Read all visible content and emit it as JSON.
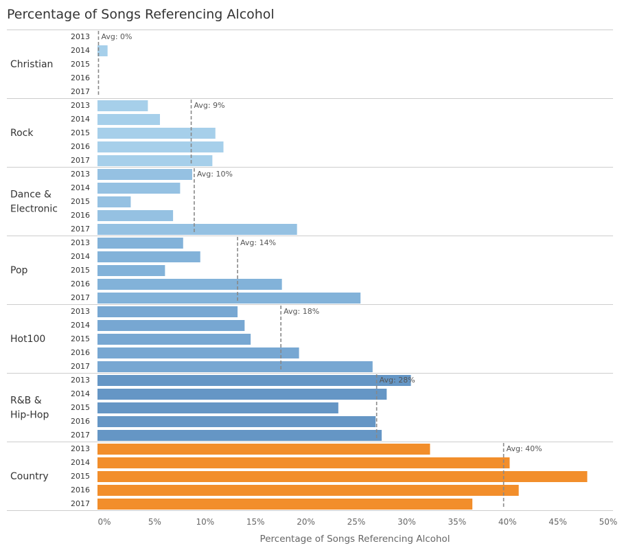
{
  "chart_data": {
    "type": "bar",
    "orientation": "horizontal",
    "title": "Percentage of Songs Referencing Alcohol",
    "xlabel": "Percentage of Songs Referencing Alcohol",
    "xlim": [
      0,
      50
    ],
    "xticks": [
      "0%",
      "5%",
      "10%",
      "15%",
      "20%",
      "25%",
      "30%",
      "35%",
      "40%",
      "45%",
      "50%"
    ],
    "xtick_values": [
      0,
      5,
      10,
      15,
      20,
      25,
      30,
      35,
      40,
      45,
      50
    ],
    "grid": false,
    "legend": "none",
    "groups": [
      {
        "label": [
          "Christian"
        ],
        "color": "#a6cfea",
        "avg": 0.1,
        "avg_label": "Avg: 0%",
        "bars": [
          {
            "year": "2013",
            "value": 0
          },
          {
            "year": "2014",
            "value": 1
          },
          {
            "year": "2015",
            "value": 0
          },
          {
            "year": "2016",
            "value": 0
          },
          {
            "year": "2017",
            "value": 0
          }
        ]
      },
      {
        "label": [
          "Rock"
        ],
        "color": "#a6cfea",
        "avg": 9.3,
        "avg_label": "Avg: 9%",
        "bars": [
          {
            "year": "2013",
            "value": 5
          },
          {
            "year": "2014",
            "value": 6.2
          },
          {
            "year": "2015",
            "value": 11.7
          },
          {
            "year": "2016",
            "value": 12.5
          },
          {
            "year": "2017",
            "value": 11.4
          }
        ]
      },
      {
        "label": [
          "Dance &",
          "Electronic"
        ],
        "color": "#95c1e2",
        "avg": 9.6,
        "avg_label": "Avg: 10%",
        "bars": [
          {
            "year": "2013",
            "value": 9.4
          },
          {
            "year": "2014",
            "value": 8.2
          },
          {
            "year": "2015",
            "value": 3.3
          },
          {
            "year": "2016",
            "value": 7.5
          },
          {
            "year": "2017",
            "value": 19.8
          }
        ]
      },
      {
        "label": [
          "Pop"
        ],
        "color": "#82b2d9",
        "avg": 13.9,
        "avg_label": "Avg: 14%",
        "bars": [
          {
            "year": "2013",
            "value": 8.5
          },
          {
            "year": "2014",
            "value": 10.2
          },
          {
            "year": "2015",
            "value": 6.7
          },
          {
            "year": "2016",
            "value": 18.3
          },
          {
            "year": "2017",
            "value": 26.1
          }
        ]
      },
      {
        "label": [
          "Hot100"
        ],
        "color": "#77a7d2",
        "avg": 18.2,
        "avg_label": "Avg: 18%",
        "bars": [
          {
            "year": "2013",
            "value": 13.9
          },
          {
            "year": "2014",
            "value": 14.6
          },
          {
            "year": "2015",
            "value": 15.2
          },
          {
            "year": "2016",
            "value": 20
          },
          {
            "year": "2017",
            "value": 27.3
          }
        ]
      },
      {
        "label": [
          "R&B &",
          "Hip-Hop"
        ],
        "color": "#6596c5",
        "avg": 27.7,
        "avg_label": "Avg: 28%",
        "bars": [
          {
            "year": "2013",
            "value": 31.1
          },
          {
            "year": "2014",
            "value": 28.7
          },
          {
            "year": "2015",
            "value": 23.9
          },
          {
            "year": "2016",
            "value": 27.6
          },
          {
            "year": "2017",
            "value": 28.2
          }
        ]
      },
      {
        "label": [
          "Country"
        ],
        "color": "#f28e2b",
        "avg": 40.3,
        "avg_label": "Avg: 40%",
        "bars": [
          {
            "year": "2013",
            "value": 33
          },
          {
            "year": "2014",
            "value": 40.9
          },
          {
            "year": "2015",
            "value": 48.6
          },
          {
            "year": "2016",
            "value": 41.8
          },
          {
            "year": "2017",
            "value": 37.2
          }
        ]
      }
    ]
  }
}
